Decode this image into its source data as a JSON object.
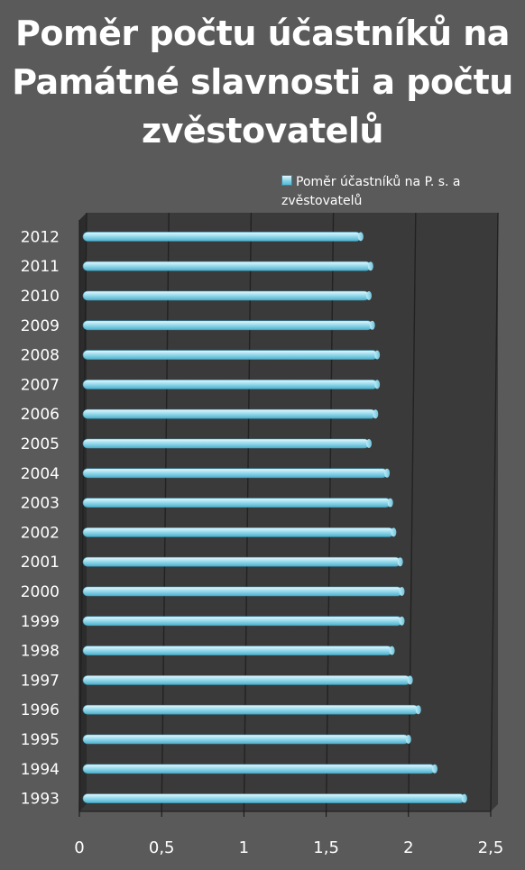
{
  "chart_data": {
    "type": "bar",
    "orientation": "horizontal",
    "title_lines": [
      "Poměr počtu účastníků na",
      "Památné slavnosti a počtu",
      "zvěstovatelů"
    ],
    "legend_lines": [
      "Poměr účastníků na P. s. a",
      "zvěstovatelů"
    ],
    "legend_placement": "top-right",
    "categories": [
      "2012",
      "2011",
      "2010",
      "2009",
      "2008",
      "2007",
      "2006",
      "2005",
      "2004",
      "2003",
      "2002",
      "2001",
      "2000",
      "1999",
      "1998",
      "1997",
      "1996",
      "1995",
      "1994",
      "1993"
    ],
    "values": [
      1.71,
      1.77,
      1.76,
      1.78,
      1.81,
      1.81,
      1.8,
      1.76,
      1.87,
      1.89,
      1.91,
      1.95,
      1.96,
      1.96,
      1.9,
      2.01,
      2.06,
      2.0,
      2.16,
      2.34
    ],
    "x_ticks": [
      "0",
      "0,5",
      "1",
      "1,5",
      "2",
      "2,5"
    ],
    "xlim": [
      0,
      2.5
    ],
    "grid": true,
    "colors": {
      "background": "#5a5a5a",
      "plot_area": "#3a3a3a",
      "bar": "#8fd6ea",
      "bar_edge": "#3a9fbd",
      "text": "#ffffff",
      "grid": "#1f1f1f"
    }
  }
}
